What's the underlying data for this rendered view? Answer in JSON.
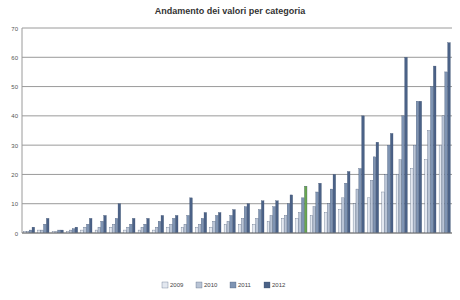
{
  "chart_data": {
    "type": "bar",
    "title": "Andamento dei valori per categoria",
    "categories": [
      null,
      null,
      null,
      null,
      null,
      null,
      null,
      null,
      null,
      null,
      null,
      null,
      null,
      null,
      null,
      null,
      null,
      null,
      null,
      null,
      null,
      null,
      null,
      null,
      null,
      null,
      null,
      null,
      null,
      null
    ],
    "series": [
      {
        "name": "2009",
        "color": "#e3e8f0",
        "values": [
          0.5,
          1,
          0.5,
          0.5,
          1,
          1,
          2,
          1,
          1,
          1,
          2,
          2,
          2,
          2,
          3,
          3,
          3,
          4,
          5,
          5,
          6,
          7,
          8,
          10,
          12,
          14,
          20,
          22,
          25,
          30
        ]
      },
      {
        "name": "2010",
        "color": "#b9c4d5",
        "values": [
          0.5,
          1,
          0.5,
          1,
          2,
          2,
          3,
          2,
          2,
          2,
          3,
          3,
          3,
          4,
          4,
          5,
          5,
          6,
          6,
          7,
          9,
          10,
          12,
          15,
          18,
          20,
          25,
          30,
          35,
          40
        ]
      },
      {
        "name": "2011",
        "color": "#7f94b3",
        "values": [
          1,
          3,
          1,
          1.5,
          3,
          4,
          5,
          3,
          3,
          4,
          5,
          6,
          5,
          6,
          6,
          9,
          8,
          9,
          10,
          12,
          14,
          15,
          17,
          22,
          26,
          30,
          40,
          45,
          50,
          55
        ]
      },
      {
        "name": "2012",
        "color": "#4b6287",
        "colors": [
          "#4b6287",
          "#4b6287",
          "#4b6287",
          "#4b6287",
          "#4b6287",
          "#4b6287",
          "#4b6287",
          "#4b6287",
          "#4b6287",
          "#4b6287",
          "#4b6287",
          "#4b6287",
          "#4b6287",
          "#4b6287",
          "#4b6287",
          "#4b6287",
          "#4b6287",
          "#4b6287",
          "#4b6287",
          "#6aa84f",
          "#4b6287",
          "#4b6287",
          "#4b6287",
          "#4b6287",
          "#4b6287",
          "#4b6287",
          "#4b6287",
          "#4b6287",
          "#4b6287",
          "#4b6287"
        ],
        "values": [
          2,
          5,
          1,
          2,
          5,
          6,
          10,
          5,
          5,
          6,
          6,
          12,
          7,
          7,
          8,
          10,
          11,
          11,
          13,
          16,
          17,
          20,
          21,
          40,
          31,
          34,
          60,
          45,
          57,
          65
        ]
      }
    ],
    "ylim": [
      0,
      70
    ],
    "yticks": [
      0,
      10,
      20,
      30,
      40,
      50,
      60,
      70
    ],
    "grid": true,
    "legend": "bottom"
  }
}
